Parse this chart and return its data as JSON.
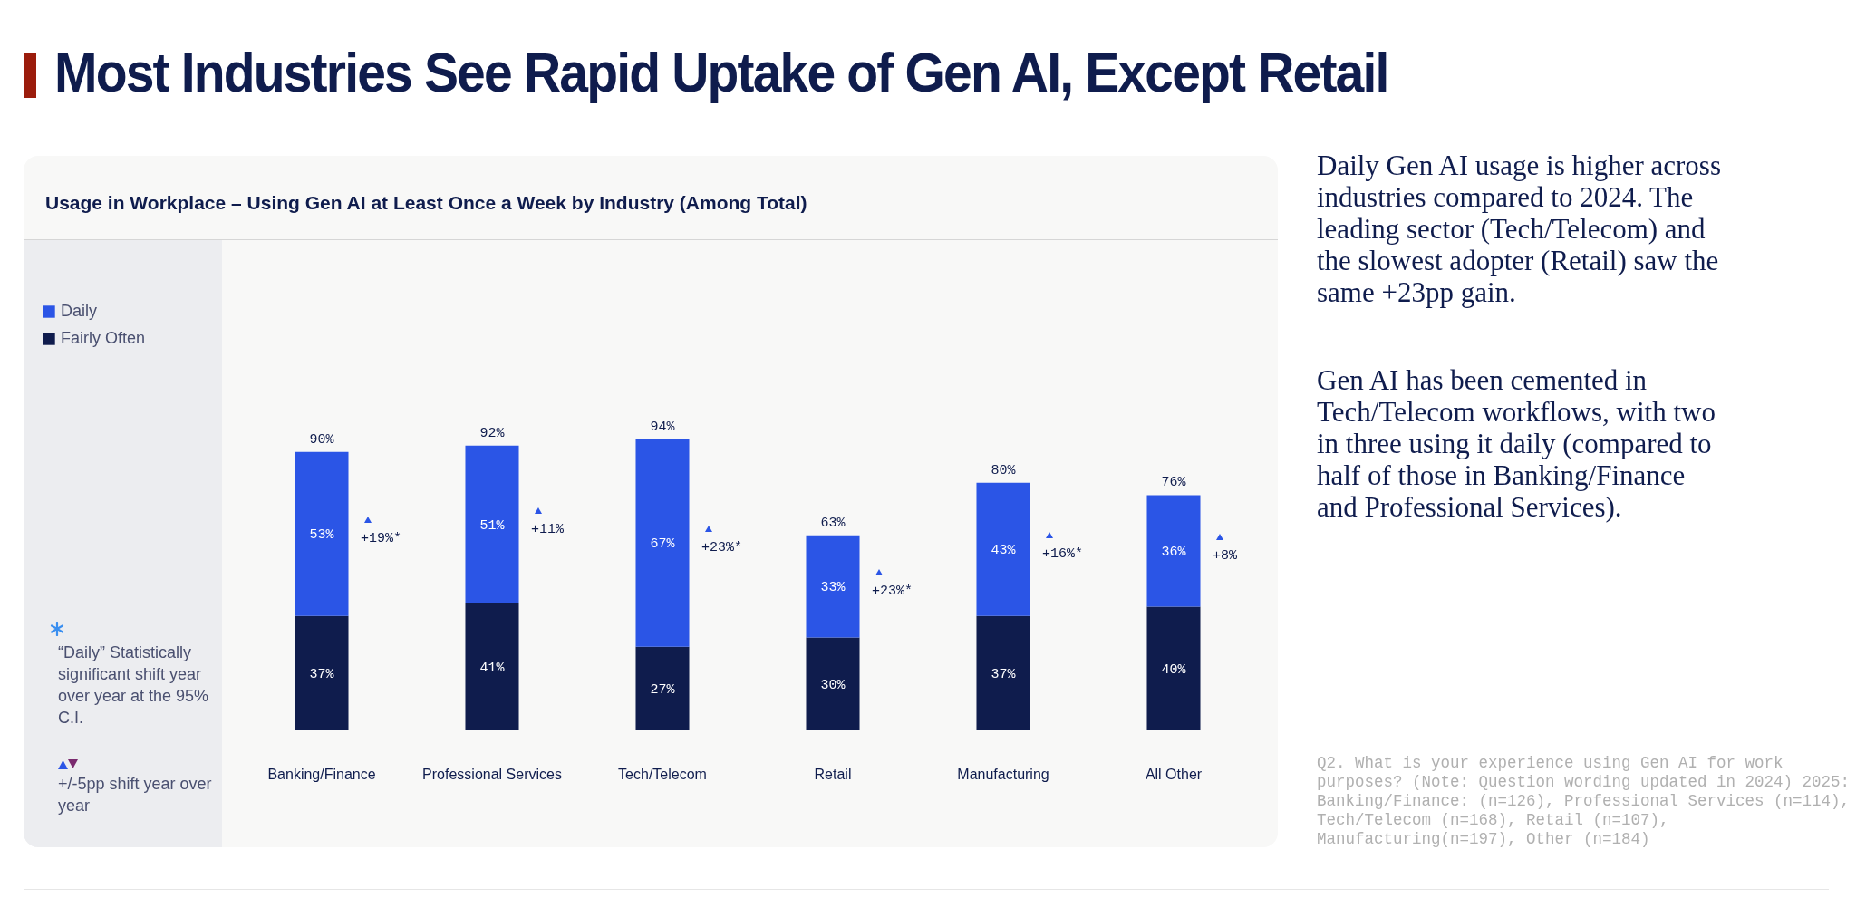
{
  "chart_data": {
    "type": "bar",
    "stacked": true,
    "title": "Most Industries See Rapid Uptake of Gen AI, Except Retail",
    "subtitle": "Usage in Workplace – Using Gen AI at Least Once a Week by Industry (Among Total)",
    "categories": [
      "Banking/Finance",
      "Professional Services",
      "Tech/Telecom",
      "Retail",
      "Manufacturing",
      "All Other"
    ],
    "series": [
      {
        "name": "Fairly Often",
        "color": "#0f1c4d",
        "values": [
          37,
          41,
          27,
          30,
          37,
          40
        ],
        "value_labels": [
          "37%",
          "41%",
          "27%",
          "30%",
          "37%",
          "40%"
        ]
      },
      {
        "name": "Daily",
        "color": "#2b55e6",
        "values": [
          53,
          51,
          67,
          33,
          43,
          36
        ],
        "value_labels": [
          "53%",
          "51%",
          "67%",
          "33%",
          "43%",
          "36%"
        ]
      }
    ],
    "totals": [
      "90%",
      "92%",
      "94%",
      "63%",
      "80%",
      "76%"
    ],
    "legend": "top left",
    "tick_labels": "x",
    "annotations": [
      "“Daily” Statistically significant shift year over year at the 95% C.I.",
      "+/-5pp shift year over year",
      "Daily Gen AI usage is higher across industries compared to 2024. The leading sector (Tech/Telecom) and the slowest adopter (Retail) saw the same +23pp gain.",
      "Gen AI has been cemented in Tech/Telecom workflows, with two in three using it daily (compared to half of those in Banking/Finance and Professional Services).",
      "Q2. What is your experience using Gen AI for work purposes? (Note: Question wording updated in 2024) 2025: Banking/Finance: (n=126), Professional Services (n=114), Tech/Telecom (n=168), Retail (n=107), Manufacturing(n=197), Other (n=184)",
      "+19%*",
      "+11%",
      "+23%*",
      "+23%*",
      "+16%*",
      "+8%"
    ]
  }
}
